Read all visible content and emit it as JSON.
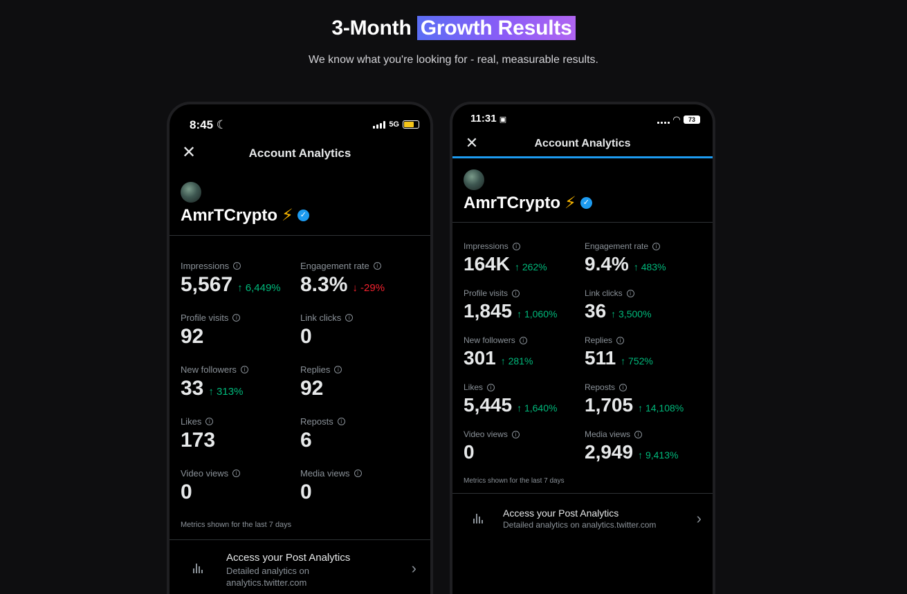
{
  "header": {
    "title_plain": "3-Month",
    "title_highlight": "Growth Results",
    "subtitle": "We know what you're looking for - real, measurable results."
  },
  "phone1": {
    "time": "8:45",
    "moon_icon": "moon-icon",
    "network": "5G",
    "title": "Account Analytics",
    "username": "AmrTCrypto",
    "metrics": [
      {
        "label": "Impressions",
        "value": "5,567",
        "delta": "↑ 6,449%",
        "trend": "up"
      },
      {
        "label": "Engagement rate",
        "value": "8.3%",
        "delta": "↓ -29%",
        "trend": "down"
      },
      {
        "label": "Profile visits",
        "value": "92",
        "delta": "",
        "trend": ""
      },
      {
        "label": "Link clicks",
        "value": "0",
        "delta": "",
        "trend": ""
      },
      {
        "label": "New followers",
        "value": "33",
        "delta": "↑ 313%",
        "trend": "up"
      },
      {
        "label": "Replies",
        "value": "92",
        "delta": "",
        "trend": ""
      },
      {
        "label": "Likes",
        "value": "173",
        "delta": "",
        "trend": ""
      },
      {
        "label": "Reposts",
        "value": "6",
        "delta": "",
        "trend": ""
      },
      {
        "label": "Video views",
        "value": "0",
        "delta": "",
        "trend": ""
      },
      {
        "label": "Media views",
        "value": "0",
        "delta": "",
        "trend": ""
      }
    ],
    "footnote": "Metrics shown for the last 7 days",
    "access_title": "Access your Post Analytics",
    "access_sub": "Detailed analytics on analytics.twitter.com"
  },
  "phone2": {
    "time": "11:31",
    "battery": "73",
    "title": "Account Analytics",
    "username": "AmrTCrypto",
    "metrics": [
      {
        "label": "Impressions",
        "value": "164K",
        "delta": "↑ 262%",
        "trend": "up"
      },
      {
        "label": "Engagement rate",
        "value": "9.4%",
        "delta": "↑ 483%",
        "trend": "up"
      },
      {
        "label": "Profile visits",
        "value": "1,845",
        "delta": "↑ 1,060%",
        "trend": "up"
      },
      {
        "label": "Link clicks",
        "value": "36",
        "delta": "↑ 3,500%",
        "trend": "up"
      },
      {
        "label": "New followers",
        "value": "301",
        "delta": "↑ 281%",
        "trend": "up"
      },
      {
        "label": "Replies",
        "value": "511",
        "delta": "↑ 752%",
        "trend": "up"
      },
      {
        "label": "Likes",
        "value": "5,445",
        "delta": "↑ 1,640%",
        "trend": "up"
      },
      {
        "label": "Reposts",
        "value": "1,705",
        "delta": "↑ 14,108%",
        "trend": "up"
      },
      {
        "label": "Video views",
        "value": "0",
        "delta": "",
        "trend": ""
      },
      {
        "label": "Media views",
        "value": "2,949",
        "delta": "↑ 9,413%",
        "trend": "up"
      }
    ],
    "footnote": "Metrics shown for the last 7 days",
    "access_title": "Access your Post Analytics",
    "access_sub": "Detailed analytics on analytics.twitter.com"
  },
  "colors": {
    "accent_gradient_start": "#5b6ef5",
    "accent_gradient_end": "#b065f2",
    "positive": "#00ba7c",
    "negative": "#f4212e",
    "verified": "#1d9bf0",
    "bolt": "#f7b500"
  }
}
